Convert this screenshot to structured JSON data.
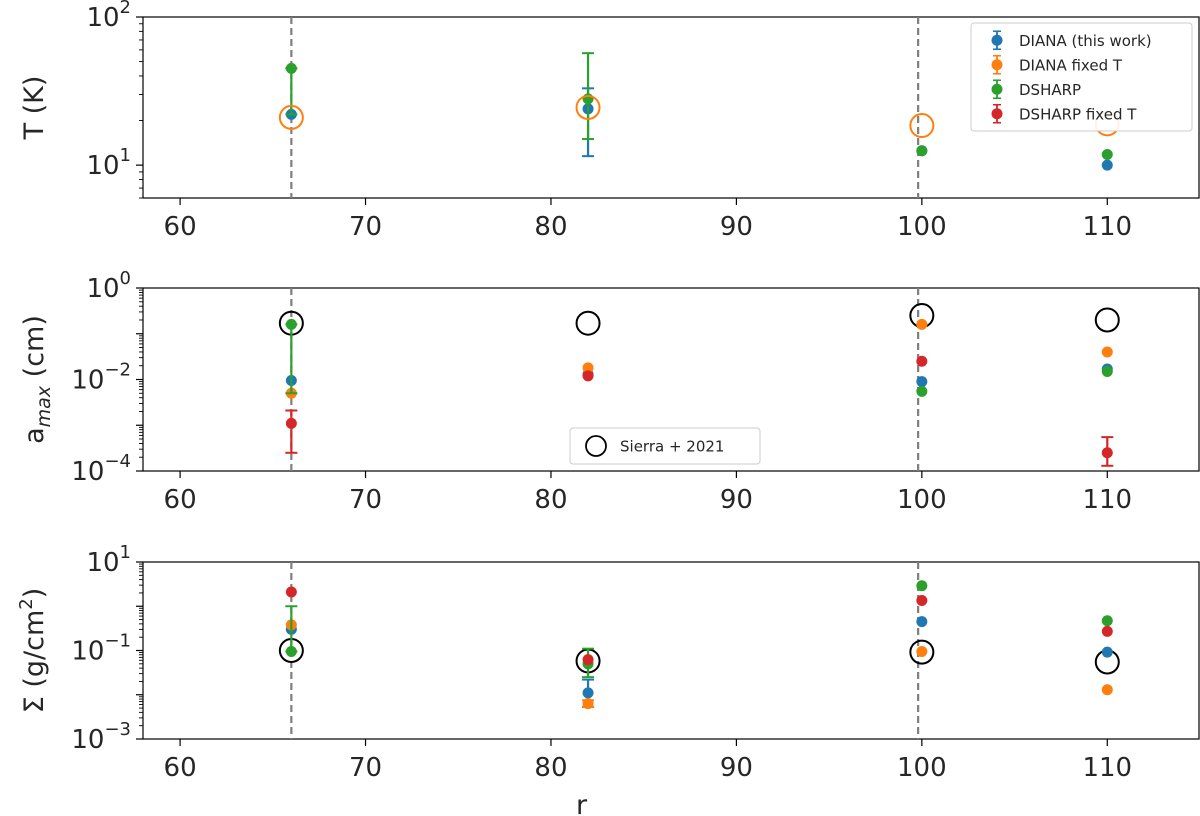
{
  "chart_data": [
    {
      "type": "scatter",
      "ylabel": "T (K)",
      "yscale": "log",
      "xlim": [
        58,
        115
      ],
      "ylim": [
        6,
        100
      ],
      "yticks": [
        {
          "v": 10,
          "base": "10",
          "exp": "1"
        },
        {
          "v": 100,
          "base": "10",
          "exp": "2"
        }
      ],
      "xticks": [
        "60",
        "70",
        "80",
        "90",
        "100",
        "110"
      ],
      "vlines": [
        66,
        99.8
      ],
      "legend": {
        "placement": "top-right",
        "entries": [
          {
            "label": "DIANA (this work)",
            "color": "#1f77b4"
          },
          {
            "label": "DIANA fixed T",
            "color": "#ff7f0e"
          },
          {
            "label": "DSHARP",
            "color": "#2ca02c"
          },
          {
            "label": "DSHARP fixed T",
            "color": "#d62728"
          }
        ]
      },
      "series": [
        {
          "name": "DIANA (this work)",
          "color": "#1f77b4",
          "points": [
            {
              "x": 66,
              "y": 22
            },
            {
              "x": 82,
              "y": 24,
              "lo": 11.5,
              "hi": 33
            },
            {
              "x": 100,
              "y": 12.5
            },
            {
              "x": 110,
              "y": 10
            }
          ]
        },
        {
          "name": "DSHARP",
          "color": "#2ca02c",
          "points": [
            {
              "x": 66,
              "y": 45,
              "lo": 22,
              "hi": 45
            },
            {
              "x": 82,
              "y": 28,
              "lo": 15,
              "hi": 57
            },
            {
              "x": 100,
              "y": 12.5
            },
            {
              "x": 110,
              "y": 11.8
            }
          ]
        },
        {
          "name": "DIANA fixed T",
          "color": "#ff7f0e",
          "open": true,
          "points": [
            {
              "x": 66,
              "y": 21
            },
            {
              "x": 82,
              "y": 24.5
            },
            {
              "x": 100,
              "y": 18.5
            },
            {
              "x": 110,
              "y": 19
            }
          ]
        }
      ]
    },
    {
      "type": "scatter",
      "ylabel": "a",
      "ylabel_sub": "max",
      "ylabel_unit": " (cm)",
      "yscale": "log",
      "xlim": [
        58,
        115
      ],
      "ylim": [
        0.0001,
        1
      ],
      "yticks": [
        {
          "v": 0.0001,
          "base": "10",
          "exp": "−4"
        },
        {
          "v": 0.01,
          "base": "10",
          "exp": "−2"
        },
        {
          "v": 1,
          "base": "10",
          "exp": "0"
        }
      ],
      "xticks": [
        "60",
        "70",
        "80",
        "90",
        "100",
        "110"
      ],
      "vlines": [
        66,
        99.8
      ],
      "legend": {
        "placement": "lower-center",
        "entries": [
          {
            "label": "Sierra + 2021",
            "color": "#000000",
            "open": true
          }
        ]
      },
      "series": [
        {
          "name": "Sierra + 2021",
          "color": "#000000",
          "open": true,
          "points": [
            {
              "x": 66,
              "y": 0.17
            },
            {
              "x": 82,
              "y": 0.17
            },
            {
              "x": 100,
              "y": 0.25
            },
            {
              "x": 110,
              "y": 0.2
            }
          ]
        },
        {
          "name": "DIANA (this work)",
          "color": "#1f77b4",
          "points": [
            {
              "x": 66,
              "y": 0.0095
            },
            {
              "x": 82,
              "y": 0.013
            },
            {
              "x": 100,
              "y": 0.009
            },
            {
              "x": 110,
              "y": 0.017
            }
          ]
        },
        {
          "name": "DIANA fixed T",
          "color": "#ff7f0e",
          "points": [
            {
              "x": 66,
              "y": 0.005
            },
            {
              "x": 82,
              "y": 0.018
            },
            {
              "x": 100,
              "y": 0.16
            },
            {
              "x": 110,
              "y": 0.04
            }
          ]
        },
        {
          "name": "DSHARP",
          "color": "#2ca02c",
          "points": [
            {
              "x": 66,
              "y": 0.16,
              "lo": 0.005,
              "hi": 0.16
            },
            {
              "x": 100,
              "y": 0.0055
            },
            {
              "x": 110,
              "y": 0.015
            }
          ]
        },
        {
          "name": "DSHARP fixed T",
          "color": "#d62728",
          "points": [
            {
              "x": 66,
              "y": 0.0011,
              "lo": 0.00025,
              "hi": 0.0021
            },
            {
              "x": 82,
              "y": 0.012
            },
            {
              "x": 100,
              "y": 0.025
            },
            {
              "x": 110,
              "y": 0.00025,
              "lo": 0.00013,
              "hi": 0.00055
            }
          ]
        }
      ]
    },
    {
      "type": "scatter",
      "ylabel": "Σ (g/cm",
      "ylabel_sup": "2",
      "ylabel_tail": ")",
      "yscale": "log",
      "xlim": [
        58,
        115
      ],
      "ylim": [
        0.001,
        10
      ],
      "yticks": [
        {
          "v": 0.001,
          "base": "10",
          "exp": "−3"
        },
        {
          "v": 0.1,
          "base": "10",
          "exp": "−1"
        },
        {
          "v": 10,
          "base": "10",
          "exp": "1"
        }
      ],
      "xticks": [
        "60",
        "70",
        "80",
        "90",
        "100",
        "110"
      ],
      "xlabel": "r",
      "vlines": [
        66,
        99.8
      ],
      "series": [
        {
          "name": "Sierra + 2021",
          "color": "#000000",
          "open": true,
          "points": [
            {
              "x": 66,
              "y": 0.1
            },
            {
              "x": 82,
              "y": 0.058
            },
            {
              "x": 100,
              "y": 0.092
            },
            {
              "x": 110,
              "y": 0.055
            }
          ]
        },
        {
          "name": "DIANA (this work)",
          "color": "#1f77b4",
          "points": [
            {
              "x": 66,
              "y": 0.3
            },
            {
              "x": 82,
              "y": 0.011,
              "lo": 0.0053,
              "hi": 0.022
            },
            {
              "x": 100,
              "y": 0.45
            },
            {
              "x": 110,
              "y": 0.092
            }
          ]
        },
        {
          "name": "DIANA fixed T",
          "color": "#ff7f0e",
          "points": [
            {
              "x": 66,
              "y": 0.38
            },
            {
              "x": 82,
              "y": 0.0063,
              "lo": 0.0053,
              "hi": 0.0075
            },
            {
              "x": 100,
              "y": 0.095
            },
            {
              "x": 110,
              "y": 0.013
            }
          ]
        },
        {
          "name": "DSHARP",
          "color": "#2ca02c",
          "points": [
            {
              "x": 66,
              "y": 0.095,
              "lo": 0.095,
              "hi": 1.0
            },
            {
              "x": 82,
              "y": 0.05,
              "lo": 0.025,
              "hi": 0.11
            },
            {
              "x": 100,
              "y": 2.9
            },
            {
              "x": 110,
              "y": 0.47
            }
          ]
        },
        {
          "name": "DSHARP fixed T",
          "color": "#d62728",
          "points": [
            {
              "x": 66,
              "y": 2.1
            },
            {
              "x": 82,
              "y": 0.062
            },
            {
              "x": 100,
              "y": 1.35
            },
            {
              "x": 110,
              "y": 0.27
            }
          ]
        }
      ]
    }
  ]
}
